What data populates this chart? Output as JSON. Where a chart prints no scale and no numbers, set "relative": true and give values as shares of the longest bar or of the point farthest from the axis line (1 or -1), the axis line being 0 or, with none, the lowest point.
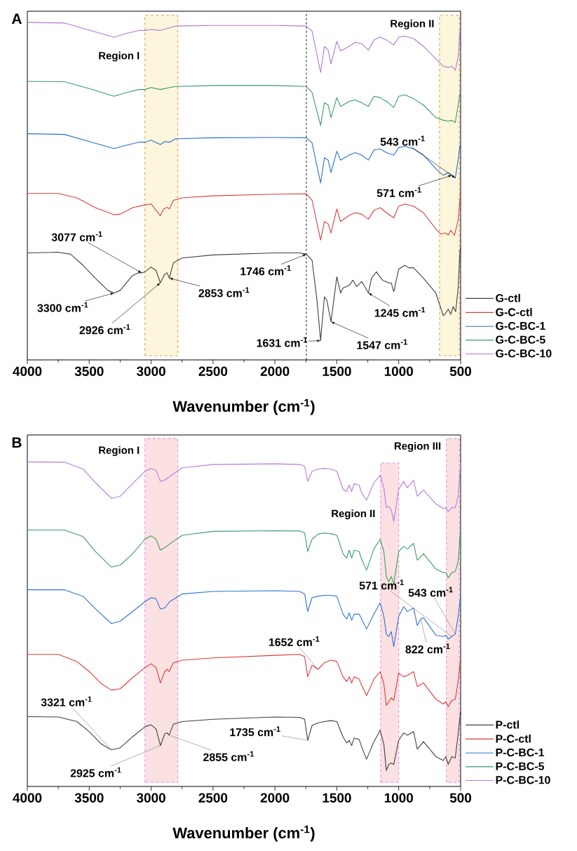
{
  "chart_data": [
    {
      "type": "line",
      "title": "A",
      "xlabel": "Wavenumber (cm$^{-1}$)",
      "relative": true,
      "xlim": [
        4000,
        500
      ],
      "xticks": [
        4000,
        3500,
        3000,
        2500,
        2000,
        1500,
        1000,
        500
      ],
      "legend": "bottom right",
      "series": [
        {
          "name": "G-ctl",
          "color": "#404040",
          "x": [
            4000,
            3750,
            3650,
            3550,
            3450,
            3350,
            3300,
            3250,
            3150,
            3100,
            3077,
            3050,
            3000,
            2960,
            2926,
            2890,
            2870,
            2853,
            2820,
            2750,
            2500,
            2000,
            1800,
            1746,
            1700,
            1660,
            1631,
            1600,
            1580,
            1547,
            1500,
            1470,
            1450,
            1400,
            1370,
            1340,
            1300,
            1280,
            1245,
            1220,
            1180,
            1160,
            1130,
            1080,
            1060,
            1040,
            1000,
            950,
            920,
            880,
            800,
            700,
            640,
            620,
            600,
            580,
            560,
            540,
            520,
            505,
            500
          ],
          "values": [
            0.317,
            0.319,
            0.313,
            0.28,
            0.242,
            0.206,
            0.198,
            0.206,
            0.25,
            0.258,
            0.258,
            0.261,
            0.275,
            0.265,
            0.228,
            0.254,
            0.258,
            0.242,
            0.288,
            0.302,
            0.311,
            0.317,
            0.317,
            0.313,
            0.295,
            0.176,
            0.057,
            0.187,
            0.176,
            0.113,
            0.246,
            0.198,
            0.213,
            0.221,
            0.236,
            0.217,
            0.232,
            0.221,
            0.198,
            0.242,
            0.261,
            0.25,
            0.236,
            0.228,
            0.228,
            0.202,
            0.269,
            0.28,
            0.273,
            0.273,
            0.242,
            0.198,
            0.131,
            0.139,
            0.15,
            0.135,
            0.158,
            0.143,
            0.213,
            0.325,
            0.332
          ]
        },
        {
          "name": "G-C-ctl",
          "color": "#d94040",
          "x": [
            4000,
            3750,
            3600,
            3450,
            3300,
            3250,
            3150,
            3050,
            3000,
            2926,
            2900,
            2870,
            2853,
            2820,
            2750,
            2500,
            2000,
            1746,
            1700,
            1631,
            1600,
            1570,
            1547,
            1500,
            1470,
            1400,
            1350,
            1300,
            1245,
            1200,
            1150,
            1100,
            1040,
            1000,
            950,
            880,
            800,
            700,
            660,
            620,
            600,
            580,
            550,
            520,
            500
          ],
          "values": [
            0.493,
            0.493,
            0.48,
            0.451,
            0.43,
            0.432,
            0.451,
            0.459,
            0.462,
            0.427,
            0.447,
            0.452,
            0.447,
            0.473,
            0.48,
            0.486,
            0.491,
            0.492,
            0.473,
            0.355,
            0.41,
            0.403,
            0.376,
            0.447,
            0.41,
            0.428,
            0.436,
            0.432,
            0.417,
            0.443,
            0.451,
            0.436,
            0.421,
            0.455,
            0.462,
            0.455,
            0.436,
            0.388,
            0.373,
            0.376,
            0.369,
            0.384,
            0.369,
            0.413,
            0.499
          ]
        },
        {
          "name": "G-C-BC-1",
          "color": "#2a6fcf",
          "x": [
            4000,
            3700,
            3500,
            3300,
            3200,
            3100,
            3050,
            3000,
            2926,
            2890,
            2853,
            2800,
            2500,
            2000,
            1746,
            1700,
            1631,
            1600,
            1570,
            1547,
            1500,
            1470,
            1400,
            1350,
            1300,
            1245,
            1200,
            1150,
            1100,
            1040,
            1000,
            950,
            880,
            800,
            700,
            640,
            600,
            571,
            543,
            520,
            505,
            500
          ],
          "values": [
            0.67,
            0.668,
            0.647,
            0.626,
            0.636,
            0.645,
            0.645,
            0.651,
            0.638,
            0.647,
            0.645,
            0.655,
            0.658,
            0.659,
            0.658,
            0.643,
            0.524,
            0.599,
            0.592,
            0.555,
            0.618,
            0.592,
            0.607,
            0.614,
            0.607,
            0.592,
            0.622,
            0.625,
            0.614,
            0.607,
            0.629,
            0.633,
            0.625,
            0.607,
            0.566,
            0.547,
            0.555,
            0.547,
            0.539,
            0.592,
            0.636,
            0.629
          ]
        },
        {
          "name": "G-C-BC-5",
          "color": "#3a9a64",
          "x": [
            4000,
            3700,
            3500,
            3300,
            3200,
            3100,
            3050,
            3000,
            2926,
            2850,
            2800,
            2500,
            2000,
            1746,
            1700,
            1631,
            1600,
            1570,
            1547,
            1500,
            1470,
            1400,
            1350,
            1300,
            1245,
            1200,
            1150,
            1100,
            1040,
            1000,
            950,
            880,
            800,
            700,
            640,
            600,
            571,
            543,
            520,
            505,
            500
          ],
          "values": [
            0.825,
            0.824,
            0.804,
            0.781,
            0.792,
            0.801,
            0.801,
            0.807,
            0.801,
            0.807,
            0.81,
            0.813,
            0.813,
            0.81,
            0.792,
            0.695,
            0.762,
            0.755,
            0.718,
            0.777,
            0.751,
            0.766,
            0.77,
            0.762,
            0.751,
            0.781,
            0.777,
            0.766,
            0.748,
            0.781,
            0.785,
            0.774,
            0.755,
            0.718,
            0.71,
            0.707,
            0.71,
            0.703,
            0.755,
            0.789,
            0.789
          ]
        },
        {
          "name": "G-C-BC-10",
          "color": "#b277d6",
          "x": [
            4000,
            3700,
            3500,
            3300,
            3200,
            3100,
            3050,
            3000,
            2926,
            2850,
            2800,
            2500,
            2000,
            1746,
            1700,
            1631,
            1600,
            1570,
            1547,
            1500,
            1470,
            1400,
            1350,
            1300,
            1245,
            1200,
            1150,
            1100,
            1040,
            1000,
            950,
            880,
            800,
            700,
            640,
            600,
            571,
            543,
            520,
            505,
            500
          ],
          "values": [
            1.0,
            0.998,
            0.977,
            0.956,
            0.967,
            0.976,
            0.976,
            0.979,
            0.976,
            0.984,
            0.989,
            0.991,
            0.991,
            0.989,
            0.974,
            0.852,
            0.929,
            0.918,
            0.877,
            0.944,
            0.915,
            0.929,
            0.941,
            0.937,
            0.918,
            0.948,
            0.956,
            0.948,
            0.933,
            0.956,
            0.959,
            0.952,
            0.929,
            0.892,
            0.87,
            0.866,
            0.87,
            0.858,
            0.896,
            0.977,
            0.977
          ]
        }
      ],
      "bands": [
        {
          "axis": "x",
          "from": 3050,
          "to": 2785,
          "label": "Region I",
          "color": "#fcf7dc"
        },
        {
          "axis": "x",
          "from": 670,
          "to": 510,
          "label": "Region II",
          "color": "#fcf7dc"
        }
      ],
      "ref_lines": [
        {
          "axis": "x",
          "value": 1746,
          "color": "#000000",
          "line_style": "dashed"
        }
      ],
      "annotations": [
        {
          "text": "3077 cm$^{-1}$",
          "x": 3077,
          "y": 0.258
        },
        {
          "text": "3300 cm$^{-1}$",
          "x": 3300,
          "y": 0.198
        },
        {
          "text": "2926 cm$^{-1}$",
          "x": 2926,
          "y": 0.228
        },
        {
          "text": "2853 cm$^{-1}$",
          "x": 2853,
          "y": 0.242
        },
        {
          "text": "1746 cm$^{-1}$",
          "x": 1746,
          "y": 0.313
        },
        {
          "text": "1631 cm$^{-1}$",
          "x": 1631,
          "y": 0.057
        },
        {
          "text": "1547 cm$^{-1}$",
          "x": 1547,
          "y": 0.113
        },
        {
          "text": "1245 cm$^{-1}$",
          "x": 1245,
          "y": 0.198
        },
        {
          "text": "543 cm$^{-1}$",
          "x": 543,
          "y": 0.539
        },
        {
          "text": "571 cm$^{-1}$",
          "x": 571,
          "y": 0.547
        }
      ]
    },
    {
      "type": "line",
      "title": "B",
      "xlabel": "Wavenumber (cm$^{-1}$)",
      "relative": true,
      "xlim": [
        4000,
        500
      ],
      "xticks": [
        4000,
        3500,
        3000,
        2500,
        2000,
        1500,
        1000,
        500
      ],
      "legend": "bottom right",
      "series": [
        {
          "name": "P-ctl",
          "color": "#404040",
          "x": [
            4000,
            3750,
            3600,
            3500,
            3400,
            3321,
            3250,
            3150,
            3050,
            3000,
            2960,
            2925,
            2890,
            2870,
            2855,
            2820,
            2750,
            2500,
            2000,
            1800,
            1760,
            1735,
            1700,
            1650,
            1600,
            1550,
            1500,
            1450,
            1420,
            1400,
            1380,
            1360,
            1320,
            1300,
            1260,
            1200,
            1150,
            1120,
            1100,
            1080,
            1060,
            1040,
            1000,
            960,
            930,
            880,
            850,
            800,
            700,
            640,
            620,
            600,
            571,
            543,
            520,
            500
          ],
          "values": [
            0.215,
            0.214,
            0.2,
            0.169,
            0.13,
            0.113,
            0.119,
            0.153,
            0.184,
            0.19,
            0.177,
            0.126,
            0.162,
            0.165,
            0.158,
            0.192,
            0.2,
            0.207,
            0.214,
            0.213,
            0.207,
            0.142,
            0.188,
            0.196,
            0.2,
            0.203,
            0.2,
            0.153,
            0.134,
            0.142,
            0.126,
            0.149,
            0.145,
            0.123,
            0.084,
            0.138,
            0.173,
            0.13,
            0.049,
            0.068,
            0.072,
            0.068,
            0.142,
            0.165,
            0.158,
            0.169,
            0.115,
            0.138,
            0.092,
            0.08,
            0.092,
            0.068,
            0.092,
            0.088,
            0.162,
            0.231
          ]
        },
        {
          "name": "P-C-ctl",
          "color": "#e03a3a",
          "x": [
            4000,
            3750,
            3600,
            3500,
            3400,
            3321,
            3250,
            3150,
            3050,
            3000,
            2960,
            2925,
            2890,
            2870,
            2855,
            2820,
            2750,
            2500,
            2000,
            1800,
            1760,
            1735,
            1700,
            1652,
            1600,
            1550,
            1500,
            1450,
            1420,
            1400,
            1380,
            1360,
            1320,
            1300,
            1260,
            1200,
            1150,
            1120,
            1100,
            1080,
            1060,
            1040,
            1000,
            960,
            930,
            880,
            850,
            800,
            700,
            640,
            620,
            600,
            571,
            543,
            520,
            500
          ],
          "values": [
            0.407,
            0.407,
            0.385,
            0.354,
            0.316,
            0.297,
            0.301,
            0.335,
            0.366,
            0.378,
            0.366,
            0.319,
            0.354,
            0.361,
            0.354,
            0.381,
            0.389,
            0.396,
            0.404,
            0.407,
            0.4,
            0.338,
            0.374,
            0.361,
            0.381,
            0.389,
            0.385,
            0.338,
            0.323,
            0.338,
            0.319,
            0.338,
            0.331,
            0.312,
            0.28,
            0.331,
            0.354,
            0.316,
            0.25,
            0.261,
            0.273,
            0.265,
            0.35,
            0.338,
            0.342,
            0.354,
            0.308,
            0.319,
            0.269,
            0.254,
            0.261,
            0.246,
            0.265,
            0.269,
            0.323,
            0.396
          ]
        },
        {
          "name": "P-C-BC-1",
          "color": "#2f73d6",
          "x": [
            4000,
            3700,
            3550,
            3450,
            3321,
            3250,
            3150,
            3050,
            3000,
            2960,
            2925,
            2890,
            2850,
            2750,
            2500,
            2000,
            1800,
            1760,
            1735,
            1700,
            1650,
            1600,
            1550,
            1500,
            1450,
            1420,
            1400,
            1380,
            1360,
            1320,
            1300,
            1260,
            1200,
            1150,
            1120,
            1100,
            1080,
            1060,
            1040,
            1000,
            960,
            930,
            880,
            850,
            822,
            800,
            700,
            640,
            620,
            600,
            571,
            543,
            520,
            500
          ],
          "values": [
            0.606,
            0.606,
            0.586,
            0.547,
            0.502,
            0.509,
            0.539,
            0.569,
            0.582,
            0.578,
            0.547,
            0.55,
            0.569,
            0.593,
            0.601,
            0.603,
            0.601,
            0.593,
            0.539,
            0.582,
            0.586,
            0.589,
            0.589,
            0.586,
            0.531,
            0.516,
            0.535,
            0.512,
            0.531,
            0.531,
            0.516,
            0.485,
            0.531,
            0.566,
            0.524,
            0.47,
            0.462,
            0.477,
            0.431,
            0.524,
            0.554,
            0.539,
            0.55,
            0.496,
            0.516,
            0.52,
            0.466,
            0.462,
            0.466,
            0.454,
            0.462,
            0.47,
            0.524,
            0.586
          ]
        },
        {
          "name": "P-C-BC-5",
          "color": "#3b9e66",
          "x": [
            4000,
            3700,
            3550,
            3450,
            3321,
            3250,
            3150,
            3050,
            3000,
            2960,
            2925,
            2890,
            2850,
            2750,
            2500,
            2000,
            1800,
            1760,
            1735,
            1700,
            1650,
            1600,
            1550,
            1500,
            1450,
            1420,
            1400,
            1380,
            1360,
            1320,
            1300,
            1260,
            1200,
            1150,
            1120,
            1100,
            1080,
            1060,
            1040,
            1000,
            960,
            930,
            880,
            850,
            800,
            700,
            640,
            620,
            600,
            571,
            543,
            520,
            500
          ],
          "values": [
            0.79,
            0.79,
            0.77,
            0.724,
            0.676,
            0.682,
            0.717,
            0.762,
            0.772,
            0.762,
            0.728,
            0.736,
            0.747,
            0.774,
            0.786,
            0.788,
            0.787,
            0.781,
            0.724,
            0.762,
            0.778,
            0.781,
            0.779,
            0.774,
            0.717,
            0.704,
            0.728,
            0.704,
            0.728,
            0.724,
            0.701,
            0.666,
            0.732,
            0.762,
            0.724,
            0.647,
            0.631,
            0.647,
            0.624,
            0.724,
            0.74,
            0.732,
            0.749,
            0.697,
            0.717,
            0.67,
            0.659,
            0.659,
            0.643,
            0.659,
            0.663,
            0.693,
            0.794
          ]
        },
        {
          "name": "P-C-BC-10",
          "color": "#b57ce0",
          "x": [
            4000,
            3700,
            3550,
            3450,
            3321,
            3250,
            3150,
            3050,
            3000,
            2960,
            2925,
            2890,
            2850,
            2750,
            2500,
            2000,
            1800,
            1760,
            1735,
            1700,
            1650,
            1600,
            1550,
            1500,
            1450,
            1420,
            1400,
            1380,
            1360,
            1320,
            1300,
            1260,
            1200,
            1150,
            1120,
            1100,
            1080,
            1060,
            1040,
            1000,
            960,
            930,
            880,
            850,
            800,
            700,
            640,
            620,
            600,
            571,
            543,
            520,
            500
          ],
          "values": [
            1.0,
            0.999,
            0.978,
            0.936,
            0.888,
            0.894,
            0.933,
            0.971,
            0.98,
            0.974,
            0.94,
            0.944,
            0.955,
            0.982,
            0.992,
            0.994,
            0.992,
            0.986,
            0.94,
            0.971,
            0.978,
            0.98,
            0.978,
            0.971,
            0.916,
            0.909,
            0.929,
            0.909,
            0.933,
            0.929,
            0.905,
            0.882,
            0.936,
            0.959,
            0.92,
            0.859,
            0.863,
            0.851,
            0.817,
            0.916,
            0.94,
            0.92,
            0.944,
            0.894,
            0.913,
            0.871,
            0.856,
            0.859,
            0.847,
            0.859,
            0.859,
            0.894,
            0.998
          ]
        }
      ],
      "bands": [
        {
          "axis": "x",
          "from": 3050,
          "to": 2785,
          "label": "Region I",
          "color": "#fbe1e1"
        },
        {
          "axis": "x",
          "from": 1146,
          "to": 1000,
          "label": "Region II",
          "color": "#fbe1e1"
        },
        {
          "axis": "x",
          "from": 615,
          "to": 510,
          "label": "Region III",
          "color": "#fbe1e1"
        }
      ],
      "annotations": [
        {
          "text": "3321 cm$^{-1}$",
          "x": 3321,
          "y": 0.113
        },
        {
          "text": "2925 cm$^{-1}$",
          "x": 2925,
          "y": 0.126
        },
        {
          "text": "2855 cm$^{-1}$",
          "x": 2855,
          "y": 0.158
        },
        {
          "text": "1735 cm$^{-1}$",
          "x": 1735,
          "y": 0.142
        },
        {
          "text": "1652 cm$^{-1}$",
          "x": 1652,
          "y": 0.361
        },
        {
          "text": "571 cm$^{-1}$",
          "x": 571,
          "y": 0.462
        },
        {
          "text": "543 cm$^{-1}$",
          "x": 543,
          "y": 0.47
        },
        {
          "text": "822 cm$^{-1}$",
          "x": 822,
          "y": 0.516
        }
      ]
    }
  ]
}
